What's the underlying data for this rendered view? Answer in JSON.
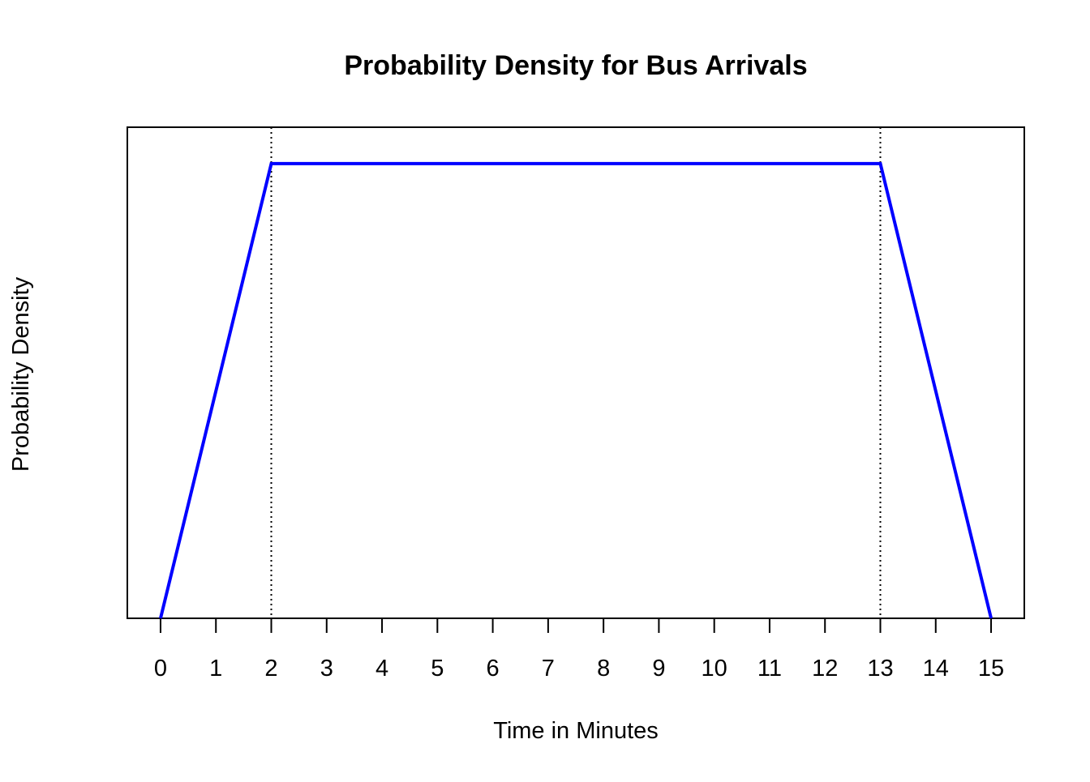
{
  "chart_data": {
    "type": "line",
    "title": "Probability Density for Bus Arrivals",
    "xlabel": "Time in Minutes",
    "ylabel": "Probability Density",
    "xlim": [
      -0.6,
      15.6
    ],
    "ylim": [
      0,
      1.08
    ],
    "x_ticks": [
      0,
      1,
      2,
      3,
      4,
      5,
      6,
      7,
      8,
      9,
      10,
      11,
      12,
      13,
      14,
      15
    ],
    "y_ticks_shown": false,
    "grid": false,
    "legend": "none",
    "series": [
      {
        "x": [
          0,
          2,
          13,
          15
        ],
        "y": [
          0,
          1,
          1,
          0
        ],
        "color": "#0000ff"
      }
    ],
    "reference_lines": [
      {
        "orientation": "vertical",
        "x": 2,
        "style": "dotted",
        "color": "#000000"
      },
      {
        "orientation": "vertical",
        "x": 13,
        "style": "dotted",
        "color": "#000000"
      }
    ]
  }
}
